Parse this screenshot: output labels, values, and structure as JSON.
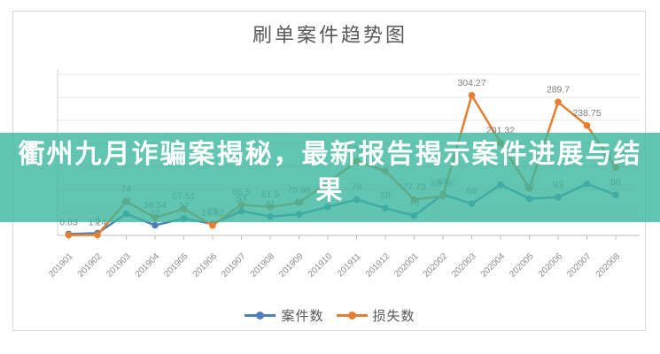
{
  "chart_data": {
    "type": "line",
    "title": "刷单案件趋势图",
    "categories": [
      "201901",
      "201902",
      "201903",
      "201904",
      "201905",
      "201906",
      "201907",
      "201908",
      "201909",
      "201910",
      "201911",
      "201912",
      "202001",
      "202002",
      "202003",
      "202004",
      "202005",
      "202006",
      "202007",
      "202008"
    ],
    "series": [
      {
        "name": "案件数",
        "color": "#4f7fba",
        "values": [
          3,
          5,
          47,
          22,
          37,
          25,
          53,
          41,
          46,
          62,
          78,
          59,
          43,
          89,
          69,
          110,
          80,
          83,
          112,
          88
        ],
        "point_labels": [
          "",
          "5",
          "47",
          "22",
          "37",
          "25",
          "53",
          "41",
          "46",
          "",
          "78",
          "59",
          "43",
          "89",
          "69",
          "",
          "80",
          "83",
          "",
          "88"
        ]
      },
      {
        "name": "损失数",
        "color": "#e57e30",
        "values": [
          0.83,
          1.24,
          74,
          38.54,
          57.51,
          21.82,
          66.5,
          61.9,
          70.98,
          115,
          160.83,
          140,
          77.73,
          85.86,
          304.27,
          201.32,
          102,
          289.7,
          238.75,
          147.99
        ],
        "point_labels": [
          "0.83",
          "1.24",
          "74",
          "38.54",
          "57.51",
          "21.82",
          "66.5",
          "61.9",
          "70.98",
          "",
          "160.83",
          "",
          "77.73",
          "85.86",
          "304.27",
          "201.32",
          "",
          "289.7",
          "238.75",
          "147.99"
        ]
      }
    ],
    "ylim": [
      0,
      350
    ],
    "grid": true,
    "legend_position": "bottom",
    "label_color": "#7f7f7f",
    "axis_label_color": "#8c8c8c"
  },
  "overlay": {
    "headline": "衢州九月诈骗案揭秘，最新报告揭示案件进展与结果",
    "line1": "衢州九月诈骗案揭秘，最新报告揭示案件进展与结",
    "line2": "果",
    "background": "#3bb69e"
  }
}
